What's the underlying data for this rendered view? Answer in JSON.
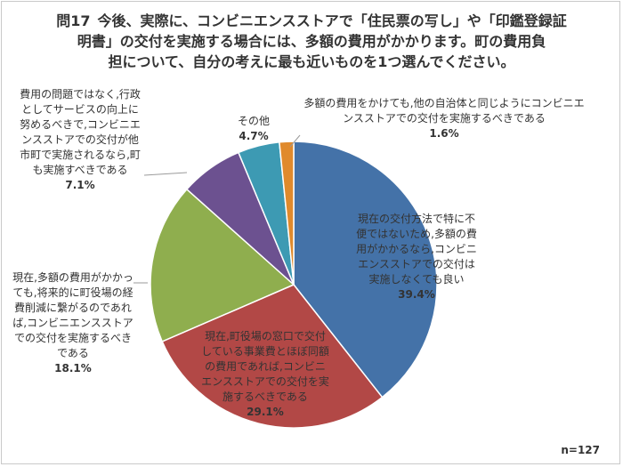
{
  "title": {
    "question_no": "問17",
    "line1": "今後、実際に、コンビニエンスストアで「住民票の写し」や「印鑑登録証",
    "line2": "明書」の交付を実施する場合には、多額の費用がかかります。町の費用負",
    "line3": "担について、自分の考えに最も近いものを1つ選んでください。"
  },
  "n_label": "n=127",
  "chart_data": {
    "type": "pie",
    "title": "",
    "start_angle_deg": 0,
    "direction": "clockwise",
    "slices": [
      {
        "label": "現在の交付方法で特に不便ではないため,多額の費用がかかるなら,コンビニエンスストアでの交付は実施しなくても良い",
        "value": 39.4,
        "value_label": "39.4%",
        "color": "#4472a8"
      },
      {
        "label": "現在,町役場の窓口で交付している事業費とほぼ同額の費用であれば,コンビニエンスストアでの交付を実施するべきである",
        "value": 29.1,
        "value_label": "29.1%",
        "color": "#b24846"
      },
      {
        "label": "現在,多額の費用がかかっても,将来的に町役場の経費削減に繋がるのであれば,コンビニエンスストアでの交付を実施するべきである",
        "value": 18.1,
        "value_label": "18.1%",
        "color": "#8fae4e"
      },
      {
        "label": "費用の問題ではなく,行政としてサービスの向上に努めるべきで,コンビニエンスストアでの交付が他市町で実施されるなら,町も実施すべきである",
        "value": 7.1,
        "value_label": "7.1%",
        "color": "#6c5190"
      },
      {
        "label": "その他",
        "value": 4.7,
        "value_label": "4.7%",
        "color": "#3d9ab3"
      },
      {
        "label": "多額の費用をかけても,他の自治体と同じようにコンビニエンスストアでの交付を実施するべきである",
        "value": 1.6,
        "value_label": "1.6%",
        "color": "#e08a2c"
      }
    ]
  }
}
